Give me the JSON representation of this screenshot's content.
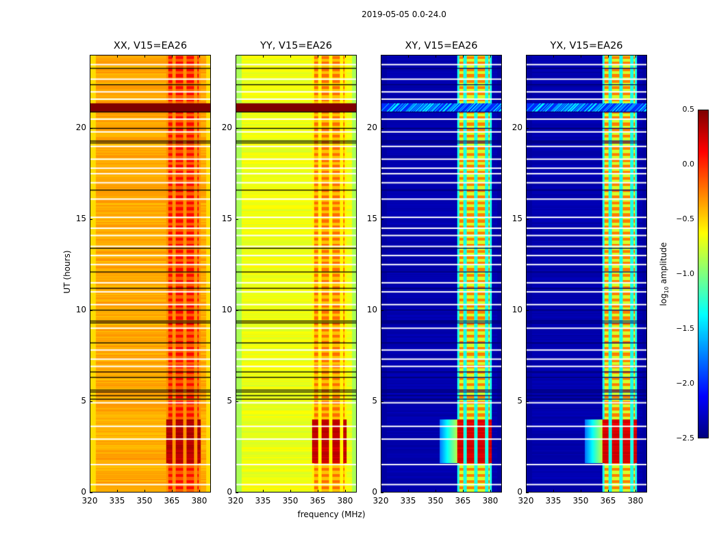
{
  "chart_data": {
    "type": "heatmap",
    "title": "2019-05-05 0.0-24.0",
    "xlabel": "frequency (MHz)",
    "ylabel": "UT (hours)",
    "xlim": [
      320,
      386.4
    ],
    "ylim": [
      0,
      24
    ],
    "xticks": [
      320,
      335,
      350,
      365,
      380
    ],
    "yticks": [
      0,
      5,
      10,
      15,
      20
    ],
    "panels": [
      {
        "title": "XX, V15=EA26",
        "base": -0.45,
        "band": -0.05,
        "gap": -0.3,
        "edge": -0.6,
        "hot": 0.4
      },
      {
        "title": "YY, V15=EA26",
        "base": -0.75,
        "band": -0.35,
        "gap": -0.6,
        "edge": -1.0,
        "hot": 0.35
      },
      {
        "title": "XY, V15=EA26",
        "base": -2.4,
        "band": -0.55,
        "gap": -1.3,
        "edge": -2.4,
        "hot": 0.3
      },
      {
        "title": "YX, V15=EA26",
        "base": -2.4,
        "band": -0.55,
        "gap": -1.3,
        "edge": -2.4,
        "hot": 0.3
      }
    ],
    "band_range_mhz": [
      362,
      381
    ],
    "band_gaps_mhz": [
      366,
      372,
      378
    ],
    "flagged_ut": [
      0.4,
      1.5,
      2.9,
      3.6,
      4.9,
      6.9,
      7.3,
      7.8,
      9.0,
      10.3,
      11.0,
      11.5,
      12.5,
      13.0,
      13.5,
      14.1,
      14.5,
      15.1,
      16.1,
      17.0,
      17.5,
      17.8,
      18.3,
      19.0,
      19.8,
      20.5,
      21.6,
      22.0,
      22.7,
      23.5
    ],
    "low_ut": [
      5.1,
      5.3,
      5.5,
      5.6,
      6.3,
      6.6,
      8.2,
      9.3,
      9.4,
      10.0,
      11.2,
      12.1,
      13.4,
      16.6,
      19.2,
      19.3,
      20.0,
      20.9,
      22.4,
      23.3
    ],
    "hot_ut_range": [
      1.6,
      4.0
    ],
    "rfi_ut_range": [
      20.9,
      21.4
    ],
    "colorbar": {
      "label": "log10 amplitude",
      "label_main": "log",
      "label_sub": "10",
      "label_rest": " amplitude",
      "range": [
        -2.5,
        0.5
      ],
      "ticks": [
        "0.5",
        "0.0",
        "−0.5",
        "−1.0",
        "−1.5",
        "−2.0",
        "−2.5"
      ],
      "colormap": "jet"
    }
  }
}
